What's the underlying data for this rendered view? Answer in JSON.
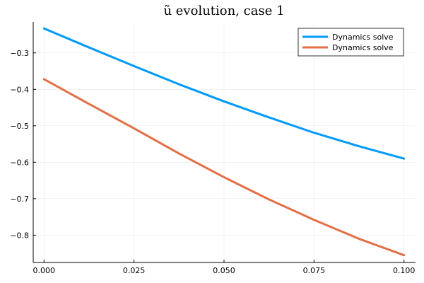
{
  "chart_data": {
    "type": "line",
    "title": "ũ evolution, case 1",
    "xlabel": "",
    "ylabel": "",
    "xlim": [
      -0.003,
      0.1032
    ],
    "ylim": [
      -0.875,
      -0.215
    ],
    "xticks": [
      0.0,
      0.025,
      0.05,
      0.075,
      0.1
    ],
    "xtick_labels": [
      "0.000",
      "0.025",
      "0.050",
      "0.075",
      "0.100"
    ],
    "yticks": [
      -0.3,
      -0.4,
      -0.5,
      -0.6,
      -0.7,
      -0.8
    ],
    "ytick_labels": [
      "−0.3",
      "−0.4",
      "−0.5",
      "−0.6",
      "−0.7",
      "−0.8"
    ],
    "grid": true,
    "legend_position": "top-right",
    "series": [
      {
        "name": "Dynamics solve",
        "color": "#009AFA",
        "x": [
          0.0,
          0.0125,
          0.025,
          0.0375,
          0.05,
          0.0625,
          0.075,
          0.0875,
          0.1
        ],
        "y": [
          -0.233,
          -0.285,
          -0.336,
          -0.386,
          -0.433,
          -0.477,
          -0.519,
          -0.556,
          -0.59
        ]
      },
      {
        "name": "Dynamics solve",
        "color": "#E26F46",
        "x": [
          0.0,
          0.0125,
          0.025,
          0.0375,
          0.05,
          0.0625,
          0.075,
          0.0875,
          0.1
        ],
        "y": [
          -0.372,
          -0.44,
          -0.507,
          -0.576,
          -0.641,
          -0.702,
          -0.758,
          -0.81,
          -0.855
        ]
      }
    ]
  }
}
